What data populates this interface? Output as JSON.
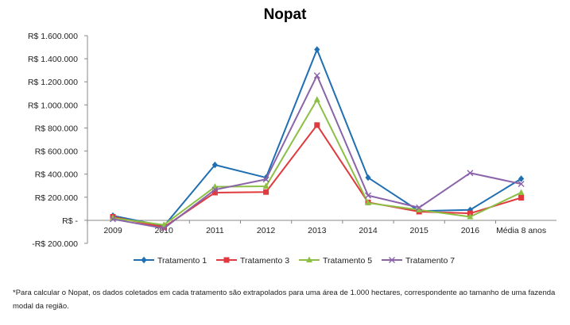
{
  "chart_data": {
    "type": "line",
    "title": "Nopat",
    "categories": [
      "2009",
      "2010",
      "2011",
      "2012",
      "2013",
      "2014",
      "2015",
      "2016",
      "Média 8  anos"
    ],
    "ylim": [
      -200000,
      1600000
    ],
    "ytick_values": [
      -200000,
      0,
      200000,
      400000,
      600000,
      800000,
      1000000,
      1200000,
      1400000,
      1600000
    ],
    "ytick_labels": [
      "-R$ 200.000",
      "R$ -",
      "R$ 200.000",
      "R$ 400.000",
      "R$ 600.000",
      "R$ 800.000",
      "R$ 1.000.000",
      "R$ 1.200.000",
      "R$ 1.400.000",
      "R$ 1.600.000"
    ],
    "grid": false,
    "legend_position": "bottom",
    "series": [
      {
        "name": "Tratamento 1",
        "color": "#1f6fb2",
        "marker": "diamond",
        "values": [
          40000,
          -50000,
          480000,
          370000,
          1480000,
          370000,
          80000,
          90000,
          360000
        ]
      },
      {
        "name": "Tratamento 3",
        "color": "#e0393e",
        "marker": "square",
        "values": [
          30000,
          -60000,
          240000,
          245000,
          825000,
          155000,
          75000,
          60000,
          195000
        ]
      },
      {
        "name": "Tratamento 5",
        "color": "#8cbf44",
        "marker": "triangle",
        "values": [
          20000,
          -40000,
          290000,
          295000,
          1045000,
          150000,
          90000,
          30000,
          240000
        ]
      },
      {
        "name": "Tratamento 7",
        "color": "#8a63a8",
        "marker": "x",
        "values": [
          10000,
          -70000,
          265000,
          355000,
          1255000,
          215000,
          110000,
          410000,
          315000
        ]
      }
    ]
  },
  "footnote": {
    "text": "*Para calcular o Nopat, os dados coletados em cada tratamento são extrapolados para uma área de 1.000 hectares, correspondente ao tamanho de uma fazenda modal da região."
  }
}
